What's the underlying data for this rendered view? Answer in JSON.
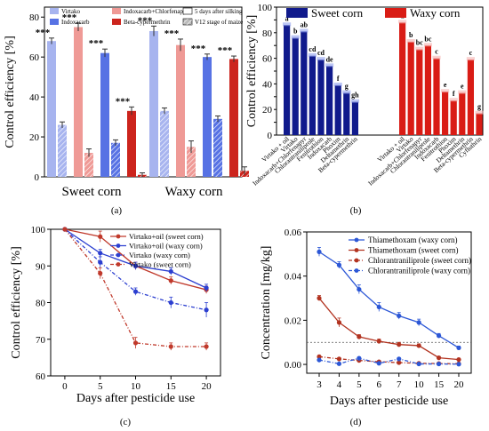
{
  "panels": {
    "a": {
      "letter": "(a)"
    },
    "b": {
      "letter": "(b)"
    },
    "c": {
      "letter": "(c)"
    },
    "d": {
      "letter": "(d)"
    }
  },
  "chart_data": [
    {
      "id": "a",
      "type": "bar",
      "ylabel": "Control efficiency [%]",
      "ylim": [
        0,
        85
      ],
      "yticks": [
        0,
        20,
        40,
        60,
        80
      ],
      "groups": [
        "Sweet corn",
        "Waxy corn"
      ],
      "legend": [
        "Virtako",
        "Indoxacarb",
        "Indoxacarb+Chlorfenapyr",
        "Beta-cypermethrin",
        "5 days after silking",
        "V12 stage of maize"
      ],
      "colors": {
        "Virtako": "#a7b4ef",
        "Indoxacarb": "#5772e4",
        "Indoxacarb+Chlorfenapyr": "#ef9a96",
        "Beta-cypermethrin": "#cc241d"
      },
      "bars": [
        {
          "group": 0,
          "treatment": "Virtako",
          "stage": "5 days after silking",
          "value": 68,
          "err": 1.5,
          "sig": "***"
        },
        {
          "group": 0,
          "treatment": "Virtako",
          "stage": "V12 stage of maize",
          "value": 26,
          "err": 1.5,
          "sig": ""
        },
        {
          "group": 0,
          "treatment": "Indoxacarb+Chlorfenapyr",
          "stage": "5 days after silking",
          "value": 75,
          "err": 2,
          "sig": "***"
        },
        {
          "group": 0,
          "treatment": "Indoxacarb+Chlorfenapyr",
          "stage": "V12 stage of maize",
          "value": 12,
          "err": 2,
          "sig": ""
        },
        {
          "group": 0,
          "treatment": "Indoxacarb",
          "stage": "5 days after silking",
          "value": 62,
          "err": 2,
          "sig": "***"
        },
        {
          "group": 0,
          "treatment": "Indoxacarb",
          "stage": "V12 stage of maize",
          "value": 17,
          "err": 1.5,
          "sig": ""
        },
        {
          "group": 0,
          "treatment": "Beta-cypermethrin",
          "stage": "5 days after silking",
          "value": 33,
          "err": 2,
          "sig": "***"
        },
        {
          "group": 0,
          "treatment": "Beta-cypermethrin",
          "stage": "V12 stage of maize",
          "value": 1,
          "err": 1,
          "sig": ""
        },
        {
          "group": 1,
          "treatment": "Virtako",
          "stage": "5 days after silking",
          "value": 73,
          "err": 2.5,
          "sig": "***"
        },
        {
          "group": 1,
          "treatment": "Virtako",
          "stage": "V12 stage of maize",
          "value": 33,
          "err": 1.5,
          "sig": ""
        },
        {
          "group": 1,
          "treatment": "Indoxacarb+Chlorfenapyr",
          "stage": "5 days after silking",
          "value": 66,
          "err": 3,
          "sig": "***"
        },
        {
          "group": 1,
          "treatment": "Indoxacarb+Chlorfenapyr",
          "stage": "V12 stage of maize",
          "value": 15,
          "err": 3,
          "sig": ""
        },
        {
          "group": 1,
          "treatment": "Indoxacarb",
          "stage": "5 days after silking",
          "value": 60,
          "err": 1.5,
          "sig": "***"
        },
        {
          "group": 1,
          "treatment": "Indoxacarb",
          "stage": "V12 stage of maize",
          "value": 29,
          "err": 1.5,
          "sig": ""
        },
        {
          "group": 1,
          "treatment": "Beta-cypermethrin",
          "stage": "5 days after silking",
          "value": 59,
          "err": 1.5,
          "sig": "***"
        },
        {
          "group": 1,
          "treatment": "Beta-cypermethrin",
          "stage": "V12 stage of maize",
          "value": 3,
          "err": 2,
          "sig": ""
        }
      ]
    },
    {
      "id": "b",
      "type": "bar",
      "ylabel": "Control efficiency [%]",
      "ylim": [
        0,
        100
      ],
      "yticks": [
        0,
        10,
        20,
        30,
        40,
        50,
        60,
        70,
        80,
        90,
        100
      ],
      "legend": [
        "Sweet corn",
        "Waxy corn"
      ],
      "colors": {
        "Sweet corn": "#101a8c",
        "Waxy corn": "#d91c15"
      },
      "categories": [
        "Virtako + oil",
        "Virtako",
        "Indoxacarb+Chlorfenapyr",
        "Chlorantraniliprole",
        "Fenitrothion",
        "Indoxacarb",
        "Phoxim",
        "Deltamethrin",
        "Beta-cypermethrin",
        "Cyfluthrin"
      ],
      "series": [
        {
          "name": "Sweet corn",
          "values": [
            86,
            76,
            81,
            62,
            59,
            54,
            39,
            33,
            26,
            0
          ],
          "sig": [
            "a",
            "b",
            "ab",
            "cd",
            "cd",
            "de",
            "f",
            "g",
            "gh",
            ""
          ]
        },
        {
          "name": "Waxy corn",
          "values": [
            88,
            73,
            67,
            70,
            60,
            34,
            27,
            33,
            59,
            17
          ],
          "sig": [
            "a",
            "b",
            "bc",
            "bc",
            "c",
            "e",
            "f",
            "e",
            "c",
            "g"
          ]
        }
      ],
      "waxy_labels": [
        "Virtako + oil",
        "Virtako",
        "Indoxacarb+Chlorfenapyr",
        "Chlorantraniliprole",
        "Indoxacarb",
        "Fenitrothion",
        "Phoxim",
        "Deltamethrin",
        "Beta-cypermethrin",
        "Cyfluthrin"
      ]
    },
    {
      "id": "c",
      "type": "line",
      "ylabel": "Control efficiency [%]",
      "xlabel": "Days after pesticide use",
      "xlim": [
        -2,
        22
      ],
      "ylim": [
        60,
        100
      ],
      "xticks": [
        0,
        5,
        10,
        15,
        20
      ],
      "yticks": [
        60,
        70,
        80,
        90,
        100
      ],
      "x": [
        0,
        5,
        10,
        15,
        20
      ],
      "series": [
        {
          "name": "Virtako+oil (sweet corn)",
          "values": [
            100,
            98,
            90,
            86,
            83.5
          ],
          "err": [
            0,
            1.5,
            1,
            1,
            1
          ],
          "color": "#c0392b",
          "dash": false,
          "marker": "circle"
        },
        {
          "name": "Virtako+oil (waxy corn)",
          "values": [
            100,
            93.5,
            90,
            88.5,
            84
          ],
          "err": [
            0,
            1,
            1,
            1,
            1
          ],
          "color": "#2c3fd0",
          "dash": false,
          "marker": "circle"
        },
        {
          "name": "Virtako (waxy corn)",
          "values": [
            100,
            91,
            83,
            80,
            78
          ],
          "err": [
            0,
            1.5,
            1,
            1.5,
            2
          ],
          "color": "#2c3fd0",
          "dash": true,
          "marker": "circle"
        },
        {
          "name": "Virtako (sweet corn)",
          "values": [
            100,
            88,
            69,
            68,
            68
          ],
          "err": [
            0,
            1.5,
            1.5,
            1,
            1
          ],
          "color": "#c0392b",
          "dash": true,
          "marker": "circle"
        }
      ]
    },
    {
      "id": "d",
      "type": "line",
      "ylabel": "Concentration [mg/kg]",
      "xlabel": "Days after pesticide use",
      "categories": [
        "3",
        "4",
        "5",
        "6",
        "7",
        "10",
        "15",
        "20"
      ],
      "ylim": [
        -0.004,
        0.06
      ],
      "yticks": [
        0,
        0.02,
        0.04,
        0.06
      ],
      "ytick_labels": [
        "0.00",
        "0.02",
        "0.04",
        "0.06"
      ],
      "reference_line": 0.01,
      "series": [
        {
          "name": "Thiamethoxam (waxy corn)",
          "values": [
            0.051,
            0.045,
            0.034,
            0.026,
            0.022,
            0.019,
            0.013,
            0.0075
          ],
          "err": [
            0.002,
            0.0015,
            0.002,
            0.002,
            0.0015,
            0.0015,
            0.001,
            0.0008
          ],
          "color": "#2c57d6",
          "dash": false
        },
        {
          "name": "Thiamethoxam (sweet corn)",
          "values": [
            0.03,
            0.019,
            0.0125,
            0.0105,
            0.009,
            0.0085,
            0.003,
            0.0022
          ],
          "err": [
            0.0012,
            0.002,
            0.001,
            0.001,
            0.001,
            0.0008,
            0.0006,
            0.0005
          ],
          "color": "#b23320",
          "dash": false
        },
        {
          "name": "Chlorantraniliprole (sweet corn)",
          "values": [
            0.0035,
            0.0025,
            0.0018,
            0.0012,
            0.0008,
            0.0005,
            0.0004,
            0.0003
          ],
          "err": [
            0.0005,
            0.0005,
            0.0004,
            0.0003,
            0.0003,
            0.0002,
            0.0002,
            0.0002
          ],
          "color": "#b23320",
          "dash": true
        },
        {
          "name": "Chlorantraniliprole (waxy corn)",
          "values": [
            0.002,
            0.0003,
            0.0028,
            0.0005,
            0.0025,
            0.0002,
            0.0002,
            0.0001
          ],
          "err": [
            0.0005,
            0.0004,
            0.0005,
            0.0003,
            0.0005,
            0.0002,
            0.0002,
            0.0001
          ],
          "color": "#2c57d6",
          "dash": true
        }
      ]
    }
  ]
}
